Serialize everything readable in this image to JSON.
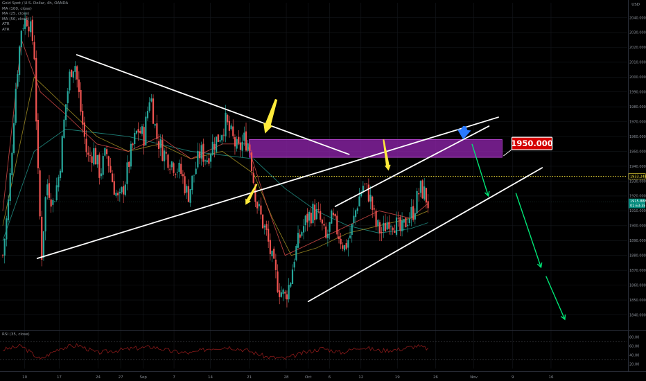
{
  "header": {
    "symbol": "Gold Spot / U.S. Dollar, 4h, OANDA",
    "indicators": [
      "MA (100, close)",
      "MA (25, close)",
      "MA (50, close)",
      "ATR",
      "ATR"
    ],
    "currency": "USD"
  },
  "rsi_panel": {
    "label": "RSI (35, close)"
  },
  "price_labels": {
    "resistance_value": "1950.000",
    "dotted_level": "1933.248",
    "current_price": "1915.888",
    "countdown": "01:53:35"
  },
  "colors": {
    "background": "#000000",
    "candle_up": "#26a69a",
    "candle_down": "#ef5350",
    "zone": "#8e24aa",
    "trendline": "#ffffff",
    "yellow_arrow": "#ffeb3b",
    "blue_arrow": "#2979ff",
    "green_arrow": "#00e676",
    "label_red": "#d50000",
    "ma_100": "#26a69a",
    "ma_25": "#ef5350",
    "ma_50": "#b8a32a",
    "rsi_line": "#8b1a1a"
  },
  "chart_data": {
    "type": "candlestick",
    "title": "Gold Spot / U.S. Dollar, 4h, OANDA",
    "y_axis": {
      "min": 1830,
      "max": 2050,
      "ticks": [
        "1840.000",
        "1850.000",
        "1860.000",
        "1870.000",
        "1880.000",
        "1890.000",
        "1900.000",
        "1910.000",
        "1920.000",
        "1930.000",
        "1940.000",
        "1950.000",
        "1960.000",
        "1970.000",
        "1980.000",
        "1990.000",
        "2000.000",
        "2010.000",
        "2020.000",
        "2030.000",
        "2040.000"
      ]
    },
    "rsi_axis": {
      "min": 10,
      "max": 90,
      "ticks": [
        "20.00",
        "40.00",
        "60.00",
        "80.00"
      ],
      "levels": [
        30,
        70
      ]
    },
    "x_axis": {
      "ticks": [
        {
          "label": "10",
          "t": 0.035
        },
        {
          "label": "17",
          "t": 0.09
        },
        {
          "label": "24",
          "t": 0.152
        },
        {
          "label": "27",
          "t": 0.188
        },
        {
          "label": "Sep",
          "t": 0.224
        },
        {
          "label": "7",
          "t": 0.273
        },
        {
          "label": "14",
          "t": 0.331
        },
        {
          "label": "21",
          "t": 0.393
        },
        {
          "label": "28",
          "t": 0.452
        },
        {
          "label": "Oct",
          "t": 0.487
        },
        {
          "label": "6",
          "t": 0.521
        },
        {
          "label": "12",
          "t": 0.571
        },
        {
          "label": "19",
          "t": 0.629
        },
        {
          "label": "26",
          "t": 0.69
        },
        {
          "label": "Nov",
          "t": 0.751
        },
        {
          "label": "9",
          "t": 0.813
        },
        {
          "label": "16",
          "t": 0.874
        }
      ]
    },
    "price_path": [
      [
        0.0,
        1880
      ],
      [
        0.01,
        1920
      ],
      [
        0.02,
        1990
      ],
      [
        0.03,
        2035
      ],
      [
        0.04,
        2040
      ],
      [
        0.05,
        2020
      ],
      [
        0.056,
        1935
      ],
      [
        0.062,
        1880
      ],
      [
        0.07,
        1930
      ],
      [
        0.08,
        1915
      ],
      [
        0.09,
        1935
      ],
      [
        0.1,
        1980
      ],
      [
        0.108,
        2005
      ],
      [
        0.115,
        2010
      ],
      [
        0.125,
        1975
      ],
      [
        0.135,
        1945
      ],
      [
        0.145,
        1950
      ],
      [
        0.155,
        1935
      ],
      [
        0.165,
        1950
      ],
      [
        0.175,
        1930
      ],
      [
        0.185,
        1915
      ],
      [
        0.195,
        1930
      ],
      [
        0.205,
        1950
      ],
      [
        0.215,
        1965
      ],
      [
        0.225,
        1960
      ],
      [
        0.235,
        1990
      ],
      [
        0.245,
        1960
      ],
      [
        0.255,
        1950
      ],
      [
        0.265,
        1945
      ],
      [
        0.275,
        1940
      ],
      [
        0.285,
        1935
      ],
      [
        0.295,
        1920
      ],
      [
        0.305,
        1935
      ],
      [
        0.315,
        1950
      ],
      [
        0.325,
        1945
      ],
      [
        0.335,
        1955
      ],
      [
        0.345,
        1960
      ],
      [
        0.355,
        1970
      ],
      [
        0.365,
        1960
      ],
      [
        0.375,
        1950
      ],
      [
        0.385,
        1958
      ],
      [
        0.393,
        1955
      ],
      [
        0.4,
        1930
      ],
      [
        0.405,
        1915
      ],
      [
        0.412,
        1905
      ],
      [
        0.42,
        1895
      ],
      [
        0.43,
        1875
      ],
      [
        0.44,
        1858
      ],
      [
        0.45,
        1852
      ],
      [
        0.458,
        1862
      ],
      [
        0.465,
        1880
      ],
      [
        0.475,
        1895
      ],
      [
        0.485,
        1905
      ],
      [
        0.495,
        1910
      ],
      [
        0.505,
        1905
      ],
      [
        0.515,
        1890
      ],
      [
        0.525,
        1905
      ],
      [
        0.535,
        1895
      ],
      [
        0.545,
        1885
      ],
      [
        0.555,
        1895
      ],
      [
        0.565,
        1915
      ],
      [
        0.575,
        1928
      ],
      [
        0.585,
        1920
      ],
      [
        0.595,
        1900
      ],
      [
        0.605,
        1895
      ],
      [
        0.615,
        1905
      ],
      [
        0.625,
        1902
      ],
      [
        0.635,
        1895
      ],
      [
        0.645,
        1905
      ],
      [
        0.655,
        1910
      ],
      [
        0.665,
        1925
      ],
      [
        0.672,
        1922
      ],
      [
        0.678,
        1915
      ]
    ],
    "moving_averages": [
      {
        "name": "MA (100, close)",
        "color": "#26a69a",
        "points": [
          [
            0.0,
            1890
          ],
          [
            0.05,
            1950
          ],
          [
            0.1,
            1965
          ],
          [
            0.2,
            1960
          ],
          [
            0.3,
            1950
          ],
          [
            0.4,
            1945
          ],
          [
            0.45,
            1925
          ],
          [
            0.5,
            1910
          ],
          [
            0.55,
            1900
          ],
          [
            0.6,
            1895
          ],
          [
            0.65,
            1898
          ],
          [
            0.678,
            1902
          ]
        ]
      },
      {
        "name": "MA (50, close)",
        "color": "#b8a32a",
        "points": [
          [
            0.0,
            1900
          ],
          [
            0.05,
            2000
          ],
          [
            0.1,
            1980
          ],
          [
            0.15,
            1960
          ],
          [
            0.2,
            1950
          ],
          [
            0.25,
            1955
          ],
          [
            0.3,
            1945
          ],
          [
            0.35,
            1950
          ],
          [
            0.4,
            1935
          ],
          [
            0.43,
            1905
          ],
          [
            0.46,
            1880
          ],
          [
            0.5,
            1885
          ],
          [
            0.55,
            1895
          ],
          [
            0.6,
            1900
          ],
          [
            0.65,
            1905
          ],
          [
            0.678,
            1910
          ]
        ]
      },
      {
        "name": "MA (25, close)",
        "color": "#ef5350",
        "points": [
          [
            0.0,
            1910
          ],
          [
            0.03,
            2025
          ],
          [
            0.06,
            1990
          ],
          [
            0.1,
            1975
          ],
          [
            0.15,
            1955
          ],
          [
            0.2,
            1950
          ],
          [
            0.25,
            1960
          ],
          [
            0.3,
            1945
          ],
          [
            0.35,
            1955
          ],
          [
            0.39,
            1955
          ],
          [
            0.42,
            1915
          ],
          [
            0.45,
            1880
          ],
          [
            0.5,
            1890
          ],
          [
            0.55,
            1900
          ],
          [
            0.6,
            1910
          ],
          [
            0.65,
            1905
          ],
          [
            0.678,
            1915
          ]
        ]
      }
    ],
    "annotations": {
      "trendlines": [
        {
          "from": [
            0.118,
            2015
          ],
          "to": [
            0.552,
            1948
          ]
        },
        {
          "from": [
            0.055,
            1878
          ],
          "to": [
            0.79,
            1973
          ]
        },
        {
          "from": [
            0.53,
            1913
          ],
          "to": [
            0.775,
            1967
          ]
        },
        {
          "from": [
            0.487,
            1849
          ],
          "to": [
            0.86,
            1939
          ]
        }
      ],
      "resistance_zone": {
        "x_from": 0.393,
        "x_to": 0.796,
        "y_from": 1946,
        "y_to": 1958
      },
      "dotted_level": 1933.248,
      "current_price_line": 1915.888,
      "yellow_arrows": [
        {
          "tail": [
            0.436,
            1985
          ],
          "head": [
            0.418,
            1962
          ]
        },
        {
          "tail": [
            0.405,
            1928
          ],
          "head": [
            0.387,
            1914
          ]
        },
        {
          "tail": [
            0.607,
            1958
          ],
          "head": [
            0.615,
            1937
          ]
        }
      ],
      "blue_arrow": {
        "tail": [
          0.736,
          1967
        ],
        "head": [
          0.734,
          1958
        ]
      },
      "green_arrows": [
        {
          "tail": [
            0.748,
            1955
          ],
          "head": [
            0.774,
            1920
          ]
        },
        {
          "tail": [
            0.818,
            1922
          ],
          "head": [
            0.858,
            1872
          ]
        },
        {
          "tail": [
            0.866,
            1866
          ],
          "head": [
            0.896,
            1837
          ]
        }
      ],
      "label_anchor": [
        0.805,
        1953
      ]
    },
    "rsi_path": [
      [
        0.0,
        52
      ],
      [
        0.03,
        60
      ],
      [
        0.06,
        30
      ],
      [
        0.09,
        55
      ],
      [
        0.12,
        62
      ],
      [
        0.15,
        45
      ],
      [
        0.18,
        50
      ],
      [
        0.21,
        55
      ],
      [
        0.24,
        58
      ],
      [
        0.27,
        48
      ],
      [
        0.3,
        44
      ],
      [
        0.33,
        55
      ],
      [
        0.36,
        58
      ],
      [
        0.39,
        50
      ],
      [
        0.42,
        36
      ],
      [
        0.45,
        32
      ],
      [
        0.48,
        45
      ],
      [
        0.51,
        55
      ],
      [
        0.54,
        45
      ],
      [
        0.57,
        58
      ],
      [
        0.6,
        50
      ],
      [
        0.63,
        52
      ],
      [
        0.66,
        60
      ],
      [
        0.678,
        54
      ]
    ]
  }
}
